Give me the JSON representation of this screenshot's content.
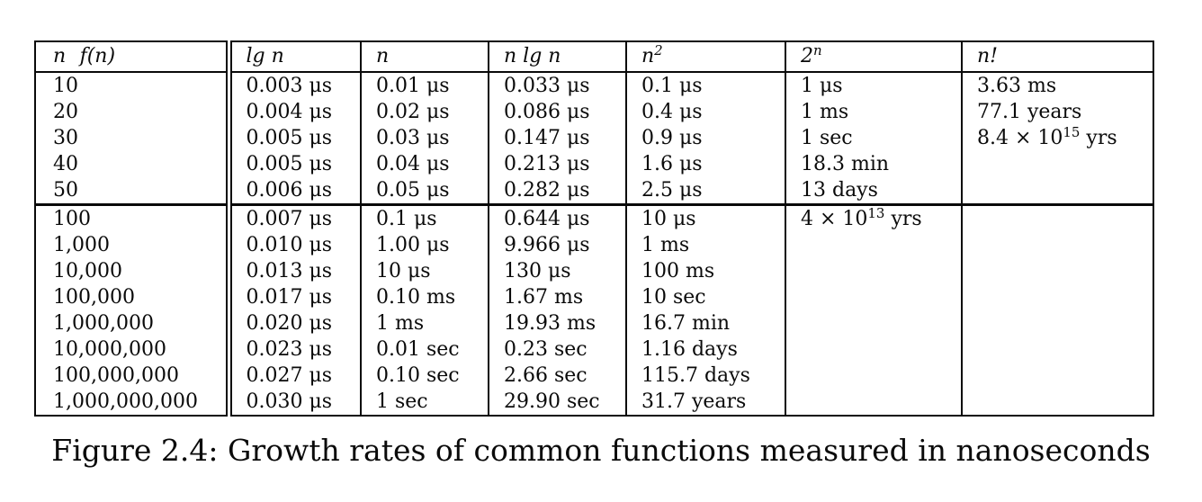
{
  "page": {
    "background_color": "#ffffff",
    "text_color": "#0a0a0a"
  },
  "figure": {
    "caption": "Figure 2.4: Growth rates of common functions measured in nanoseconds"
  },
  "table": {
    "headers": [
      "n  f(n)",
      "lg n",
      "n",
      "n lg n",
      "n^{2}",
      "2^{n}",
      "n!"
    ],
    "upper_rows": [
      [
        "10",
        "0.003 μs",
        "0.01 μs",
        "0.033 μs",
        "0.1 μs",
        "1 μs",
        "3.63 ms"
      ],
      [
        "20",
        "0.004 μs",
        "0.02 μs",
        "0.086 μs",
        "0.4 μs",
        "1 ms",
        "77.1 years"
      ],
      [
        "30",
        "0.005 μs",
        "0.03 μs",
        "0.147 μs",
        "0.9 μs",
        "1 sec",
        "8.4 × 10^{15} yrs"
      ],
      [
        "40",
        "0.005 μs",
        "0.04 μs",
        "0.213 μs",
        "1.6 μs",
        "18.3 min",
        ""
      ],
      [
        "50",
        "0.006 μs",
        "0.05 μs",
        "0.282 μs",
        "2.5 μs",
        "13 days",
        ""
      ]
    ],
    "lower_rows": [
      [
        "100",
        "0.007 μs",
        "0.1 μs",
        "0.644 μs",
        "10 μs",
        "4 × 10^{13} yrs",
        ""
      ],
      [
        "1,000",
        "0.010 μs",
        "1.00 μs",
        "9.966 μs",
        "1 ms",
        "",
        ""
      ],
      [
        "10,000",
        "0.013 μs",
        "10 μs",
        "130 μs",
        "100 ms",
        "",
        ""
      ],
      [
        "100,000",
        "0.017 μs",
        "0.10 ms",
        "1.67 ms",
        "10 sec",
        "",
        ""
      ],
      [
        "1,000,000",
        "0.020 μs",
        "1 ms",
        "19.93 ms",
        "16.7 min",
        "",
        ""
      ],
      [
        "10,000,000",
        "0.023 μs",
        "0.01 sec",
        "0.23 sec",
        "1.16 days",
        "",
        ""
      ],
      [
        "100,000,000",
        "0.027 μs",
        "0.10 sec",
        "2.66 sec",
        "115.7 days",
        "",
        ""
      ],
      [
        "1,000,000,000",
        "0.030 μs",
        "1 sec",
        "29.90 sec",
        "31.7 years",
        "",
        ""
      ]
    ]
  }
}
